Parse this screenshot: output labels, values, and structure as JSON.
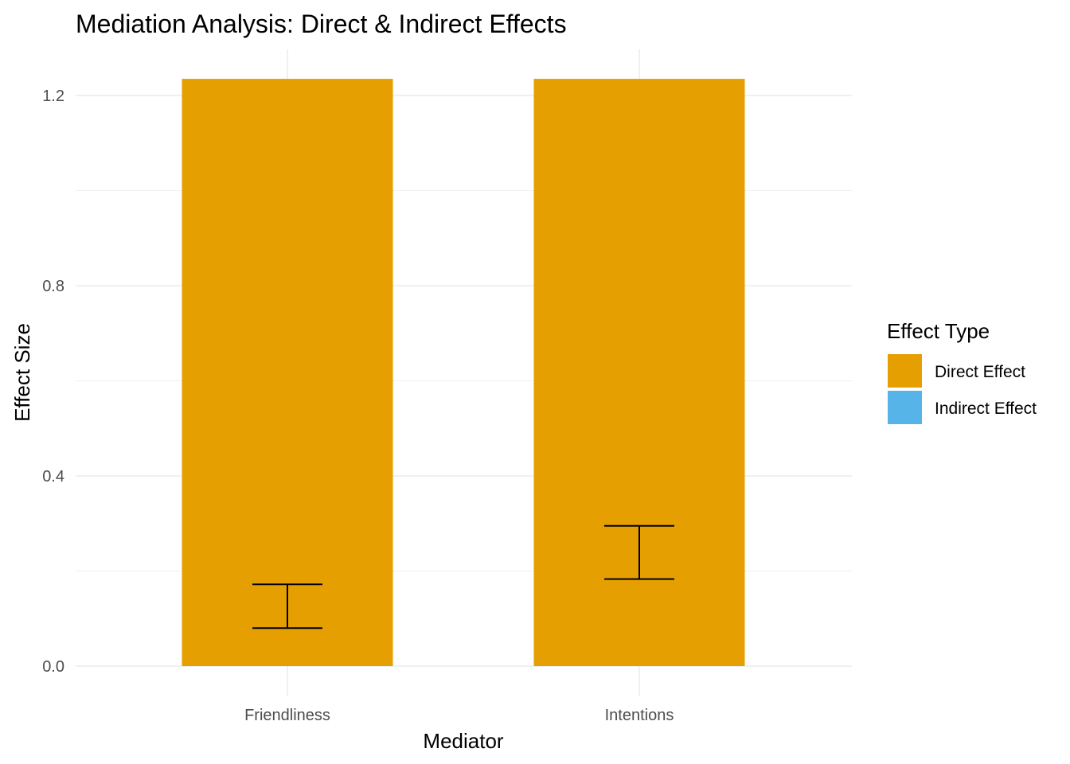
{
  "chart_data": {
    "type": "bar",
    "title": "Mediation Analysis: Direct & Indirect Effects",
    "xlabel": "Mediator",
    "ylabel": "Effect Size",
    "categories": [
      "Friendliness",
      "Intentions"
    ],
    "series": [
      {
        "name": "Direct Effect",
        "color": "#E69F00",
        "values": [
          1.235,
          1.235
        ]
      },
      {
        "name": "Indirect Effect",
        "color": "#56B4E9",
        "values": [
          0,
          0
        ]
      }
    ],
    "error_bars": [
      {
        "category": "Friendliness",
        "lower": 0.08,
        "upper": 0.172
      },
      {
        "category": "Intentions",
        "lower": 0.183,
        "upper": 0.295
      }
    ],
    "ylim": [
      -0.062,
      1.3
    ],
    "yticks": [
      0.0,
      0.4,
      0.8,
      1.2
    ],
    "ytick_labels": [
      "0.0",
      "0.4",
      "0.8",
      "1.2"
    ],
    "grid": true,
    "legend": {
      "title": "Effect Type",
      "position": "right"
    }
  }
}
